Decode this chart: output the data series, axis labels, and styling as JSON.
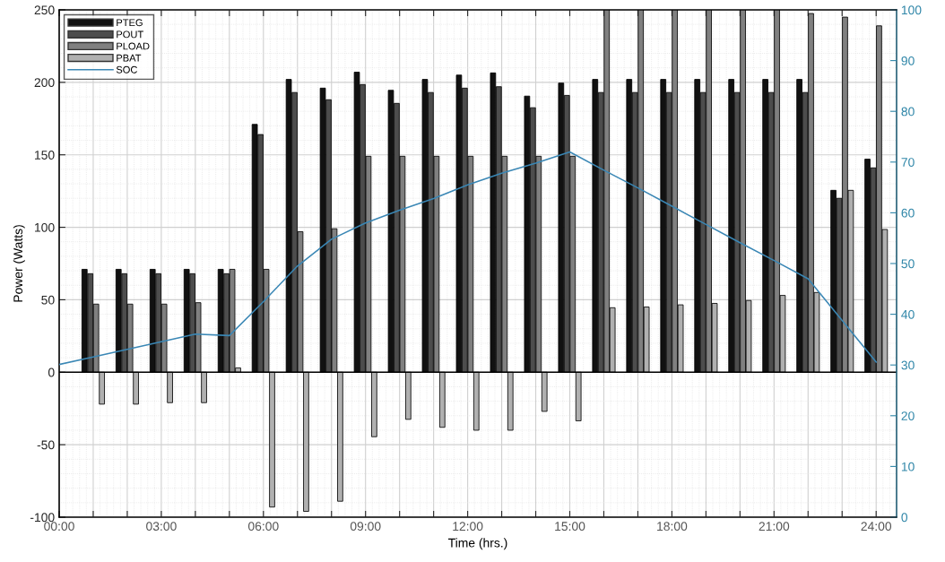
{
  "chart_data": {
    "type": "bar",
    "xlabel": "Time (hrs.)",
    "ylabel": "Power (Watts)",
    "x": [
      1,
      2,
      3,
      4,
      5,
      6,
      7,
      8,
      9,
      10,
      11,
      12,
      13,
      14,
      15,
      16,
      17,
      18,
      19,
      20,
      21,
      22,
      23,
      24
    ],
    "series": [
      {
        "name": "PTEG",
        "color": "#111111",
        "values": [
          71,
          71,
          71,
          71,
          71,
          171,
          202,
          196,
          207,
          194.5,
          202,
          205,
          206.5,
          190.5,
          199.5,
          202,
          202,
          202,
          202,
          202,
          202,
          202,
          125.5,
          147
        ]
      },
      {
        "name": "POUT",
        "color": "#4d4d4d",
        "values": [
          68,
          68,
          68,
          68,
          68,
          164,
          193,
          188,
          198.5,
          185.5,
          193,
          196,
          197,
          182.5,
          191,
          193,
          193,
          193,
          193,
          193,
          193,
          193,
          120,
          141
        ]
      },
      {
        "name": "PLOAD",
        "color": "#808080",
        "values": [
          47,
          47,
          47,
          48,
          71,
          71,
          97,
          99,
          149,
          149,
          149,
          149,
          149,
          149,
          149,
          250,
          250,
          250,
          250,
          250,
          250,
          247.5,
          245,
          239
        ]
      },
      {
        "name": "PBAT",
        "color": "#b0b0b0",
        "values": [
          -22,
          -22,
          -21,
          -21,
          3,
          -93,
          -96,
          -89,
          -44.5,
          -32.5,
          -38,
          -40,
          -40,
          -27,
          -33.5,
          44.5,
          45,
          46.5,
          47.5,
          49.5,
          53,
          55,
          125.5,
          98.5
        ]
      },
      {
        "name": "SOC",
        "type": "line",
        "axis": "y2",
        "color": "#3a87b5",
        "x": [
          0,
          1,
          2,
          3,
          4,
          5,
          6,
          7,
          8,
          9,
          10,
          11,
          12,
          13,
          14,
          15,
          16,
          17,
          18,
          19,
          20,
          21,
          22,
          23,
          24
        ],
        "values": [
          30.1,
          31.6,
          33.1,
          34.6,
          36.1,
          35.8,
          42.5,
          49.5,
          54.8,
          58,
          60.5,
          62.8,
          65.5,
          67.8,
          69.8,
          72,
          68.4,
          64.9,
          61.3,
          57.7,
          54.1,
          50.6,
          47,
          38.8,
          30.6
        ]
      }
    ],
    "xlim": [
      0,
      24.6
    ],
    "xticks": [
      {
        "value": 0,
        "label": "00:00"
      },
      {
        "value": 1,
        "label": null
      },
      {
        "value": 2,
        "label": null
      },
      {
        "value": 3,
        "label": "03:00"
      },
      {
        "value": 4,
        "label": null
      },
      {
        "value": 5,
        "label": null
      },
      {
        "value": 6,
        "label": "06:00"
      },
      {
        "value": 7,
        "label": null
      },
      {
        "value": 8,
        "label": null
      },
      {
        "value": 9,
        "label": "09:00"
      },
      {
        "value": 10,
        "label": null
      },
      {
        "value": 11,
        "label": null
      },
      {
        "value": 12,
        "label": "12:00"
      },
      {
        "value": 13,
        "label": null
      },
      {
        "value": 14,
        "label": null
      },
      {
        "value": 15,
        "label": "15:00"
      },
      {
        "value": 16,
        "label": null
      },
      {
        "value": 17,
        "label": null
      },
      {
        "value": 18,
        "label": "18:00"
      },
      {
        "value": 19,
        "label": null
      },
      {
        "value": 20,
        "label": null
      },
      {
        "value": 21,
        "label": "21:00"
      },
      {
        "value": 22,
        "label": null
      },
      {
        "value": 23,
        "label": null
      },
      {
        "value": 24,
        "label": "24:00"
      }
    ],
    "ylim": [
      -100,
      250
    ],
    "yticks": [
      -100,
      -50,
      0,
      50,
      100,
      150,
      200,
      250
    ],
    "y2lim": [
      0,
      100
    ],
    "y2ticks": [
      0,
      10,
      20,
      30,
      40,
      50,
      60,
      70,
      80,
      90,
      100
    ],
    "grid": true,
    "legend": "top left"
  }
}
